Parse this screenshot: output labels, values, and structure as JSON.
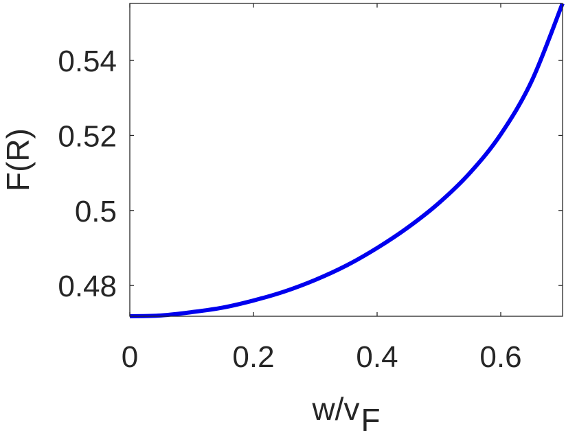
{
  "chart_data": {
    "type": "line",
    "title": "",
    "xlabel": "w/v_F",
    "xlabel_main": "w/v",
    "xlabel_sub": "F",
    "ylabel": "F(R)",
    "xlim": [
      0,
      0.7
    ],
    "ylim": [
      0.4718,
      0.5552
    ],
    "xticks": [
      0,
      0.2,
      0.4,
      0.6
    ],
    "xtick_labels": [
      "0",
      "0.2",
      "0.4",
      "0.6"
    ],
    "yticks": [
      0.48,
      0.5,
      0.52,
      0.54
    ],
    "ytick_labels": [
      "0.48",
      "0.5",
      "0.52",
      "0.54"
    ],
    "grid": false,
    "legend": null,
    "series": [
      {
        "name": "F(R)",
        "color": "#0000ee",
        "x": [
          0.0,
          0.05,
          0.1,
          0.15,
          0.2,
          0.25,
          0.3,
          0.35,
          0.4,
          0.45,
          0.5,
          0.55,
          0.6,
          0.65,
          0.7
        ],
        "values": [
          0.4718,
          0.472,
          0.4729,
          0.4741,
          0.476,
          0.4784,
          0.4815,
          0.4853,
          0.49,
          0.4955,
          0.502,
          0.51,
          0.5203,
          0.5345,
          0.5552
        ]
      }
    ]
  }
}
